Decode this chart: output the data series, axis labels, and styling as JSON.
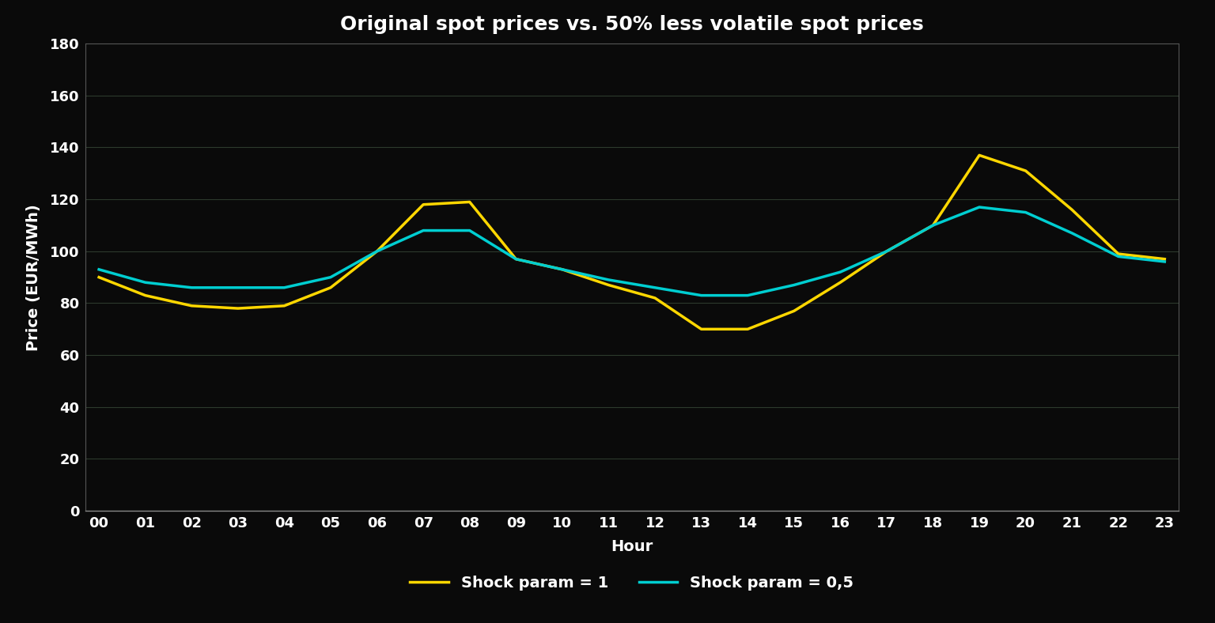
{
  "title": "Original spot prices vs. 50% less volatile spot prices",
  "xlabel": "Hour",
  "ylabel": "Price (EUR/MWh)",
  "hours": [
    "00",
    "01",
    "02",
    "03",
    "04",
    "05",
    "06",
    "07",
    "08",
    "09",
    "10",
    "11",
    "12",
    "13",
    "14",
    "15",
    "16",
    "17",
    "18",
    "19",
    "20",
    "21",
    "22",
    "23"
  ],
  "shock1": [
    90,
    83,
    79,
    78,
    79,
    86,
    100,
    118,
    119,
    97,
    93,
    87,
    82,
    70,
    70,
    77,
    88,
    100,
    110,
    137,
    131,
    116,
    99,
    97
  ],
  "shock05": [
    93,
    88,
    86,
    86,
    86,
    90,
    100,
    108,
    108,
    97,
    93,
    89,
    86,
    83,
    83,
    87,
    92,
    100,
    110,
    117,
    115,
    107,
    98,
    96
  ],
  "color_shock1": "#FFD700",
  "color_shock05": "#00CED1",
  "background_color": "#0a0a0a",
  "grid_color": "#2d3a2d",
  "text_color": "#ffffff",
  "ylim": [
    0,
    180
  ],
  "yticks": [
    0,
    20,
    40,
    60,
    80,
    100,
    120,
    140,
    160,
    180
  ],
  "line_width": 2.5,
  "title_fontsize": 18,
  "label_fontsize": 14,
  "tick_fontsize": 13,
  "legend_label1": "Shock param = 1",
  "legend_label2": "Shock param = 0,5"
}
